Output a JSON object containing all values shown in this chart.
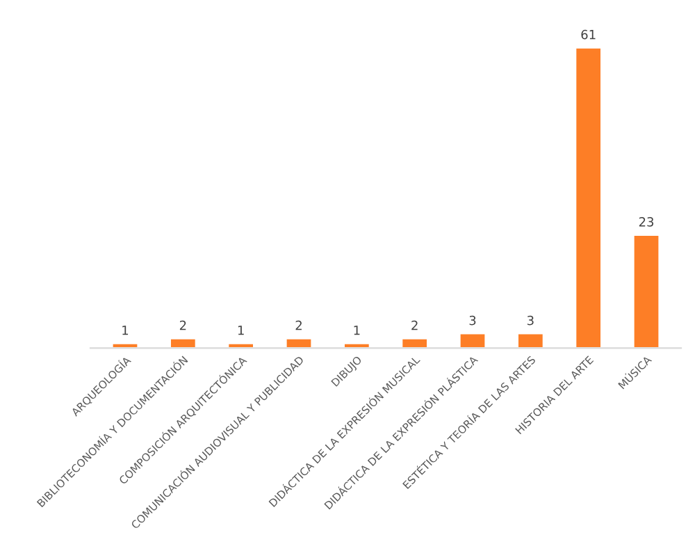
{
  "chart_data": {
    "type": "bar",
    "categories": [
      "ARQUEOLOGÍA",
      "BIBLIOTECONOMÍA Y DOCUMENTACIÓN",
      "COMPOSICIÓN ARQUITECTÓNICA",
      "COMUNICACIÓN AUDIOVISUAL Y PUBLICIDAD",
      "DIBUJO",
      "DIDÁCTICA DE LA EXPRESIÓN MUSICAL",
      "DIDÁCTICA DE LA EXPRESIÓN PLÁSTICA",
      "ESTÉTICA Y TEORÍA DE LAS ARTES",
      "HISTORIA DEL ARTE",
      "MÚSICA"
    ],
    "values": [
      1,
      2,
      1,
      2,
      1,
      2,
      3,
      3,
      61,
      23
    ],
    "color": "#fd7e26",
    "data_labels": true,
    "grid": false,
    "legend": false
  }
}
